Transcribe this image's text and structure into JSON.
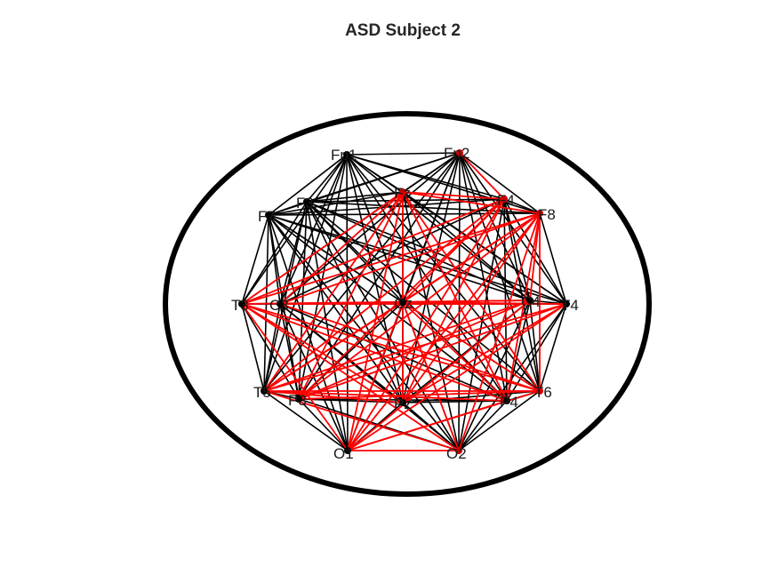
{
  "title": "ASD Subject 2",
  "colors": {
    "background": "#ffffff",
    "head": "#000000",
    "edge_black": "#000000",
    "edge_red": "#ff0000",
    "node": "#000000",
    "node_red": "#cc0000"
  },
  "nodes": [
    {
      "id": "Fp1",
      "label": "Fp1"
    },
    {
      "id": "Fp2",
      "label": "Fp2"
    },
    {
      "id": "F7",
      "label": "F7"
    },
    {
      "id": "F3",
      "label": "F3"
    },
    {
      "id": "Fz",
      "label": "Fz"
    },
    {
      "id": "F4",
      "label": "F4"
    },
    {
      "id": "F8",
      "label": "F8"
    },
    {
      "id": "T3",
      "label": "T3"
    },
    {
      "id": "C3",
      "label": "C3"
    },
    {
      "id": "Cz",
      "label": "Cz"
    },
    {
      "id": "C4",
      "label": "C4"
    },
    {
      "id": "T4",
      "label": "T4"
    },
    {
      "id": "T5",
      "label": "T5"
    },
    {
      "id": "P3",
      "label": "P3"
    },
    {
      "id": "Pz",
      "label": "Pz"
    },
    {
      "id": "P4",
      "label": "P4"
    },
    {
      "id": "T6",
      "label": "T6"
    },
    {
      "id": "O1",
      "label": "O1"
    },
    {
      "id": "O2",
      "label": "O2"
    }
  ],
  "red_edges": [
    [
      "Fz",
      "F8"
    ],
    [
      "Fz",
      "T3"
    ],
    [
      "Fz",
      "T5"
    ],
    [
      "Fz",
      "P3"
    ],
    [
      "Fz",
      "C3"
    ],
    [
      "Fz",
      "O1"
    ],
    [
      "Fz",
      "P4"
    ],
    [
      "Fz",
      "T6"
    ],
    [
      "Fz",
      "F4"
    ],
    [
      "Fz",
      "Cz"
    ],
    [
      "F4",
      "T3"
    ],
    [
      "F4",
      "T5"
    ],
    [
      "F4",
      "O1"
    ],
    [
      "F4",
      "P3"
    ],
    [
      "F4",
      "Cz"
    ],
    [
      "F4",
      "Pz"
    ],
    [
      "F8",
      "T3"
    ],
    [
      "F8",
      "C3"
    ],
    [
      "F8",
      "T5"
    ],
    [
      "F8",
      "P3"
    ],
    [
      "F8",
      "O1"
    ],
    [
      "F8",
      "Pz"
    ],
    [
      "F8",
      "Cz"
    ],
    [
      "F8",
      "P4"
    ],
    [
      "F8",
      "O2"
    ],
    [
      "F8",
      "T6"
    ],
    [
      "F8",
      "C4"
    ],
    [
      "Fp2",
      "F4"
    ],
    [
      "Cz",
      "T3"
    ],
    [
      "Cz",
      "T5"
    ],
    [
      "Cz",
      "O1"
    ],
    [
      "Cz",
      "O2"
    ],
    [
      "Cz",
      "Pz"
    ],
    [
      "Cz",
      "T4"
    ],
    [
      "Cz",
      "T6"
    ],
    [
      "Cz",
      "C4"
    ],
    [
      "Cz",
      "P4"
    ],
    [
      "T4",
      "T5"
    ],
    [
      "T4",
      "O1"
    ],
    [
      "T4",
      "P3"
    ],
    [
      "T4",
      "C3"
    ],
    [
      "T4",
      "Pz"
    ],
    [
      "C4",
      "T5"
    ],
    [
      "C4",
      "P3"
    ],
    [
      "C4",
      "O1"
    ],
    [
      "C4",
      "T3"
    ],
    [
      "T6",
      "O1"
    ],
    [
      "T6",
      "P3"
    ],
    [
      "T6",
      "T5"
    ],
    [
      "T6",
      "C3"
    ],
    [
      "T6",
      "T3"
    ],
    [
      "P4",
      "O1"
    ],
    [
      "P4",
      "T5"
    ],
    [
      "P4",
      "T3"
    ],
    [
      "O2",
      "T5"
    ],
    [
      "O2",
      "T3"
    ],
    [
      "O1",
      "T3"
    ],
    [
      "O1",
      "O2"
    ],
    [
      "Pz",
      "T5"
    ],
    [
      "Pz",
      "T3"
    ]
  ]
}
